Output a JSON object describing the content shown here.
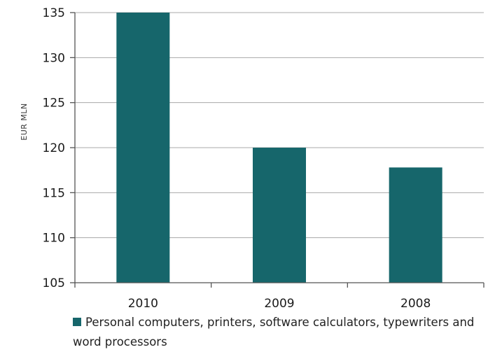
{
  "chart_data": {
    "type": "bar",
    "categories": [
      "2010",
      "2009",
      "2008"
    ],
    "series": [
      {
        "name": "Personal computers, printers, software calculators, typewriters and word processors",
        "values": [
          135,
          120,
          117.8
        ]
      }
    ],
    "xlabel": "",
    "ylabel": "EUR MLN",
    "ylim": [
      105,
      135
    ],
    "yticks": [
      "105",
      "110",
      "115",
      "120",
      "125",
      "130",
      "135"
    ],
    "grid": true,
    "legend_position": "bottom",
    "bar_color": "#16666b"
  }
}
